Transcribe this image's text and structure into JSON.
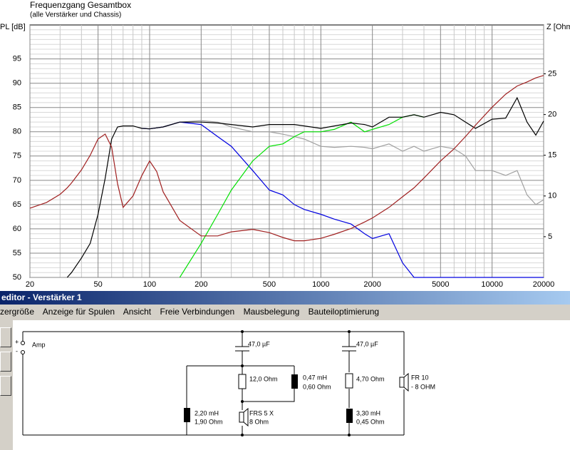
{
  "chart_data": {
    "type": "line",
    "title": "Frequenzgang Gesamtbox",
    "subtitle": "(alle Verstärker und Chassis)",
    "y_label": "PL [dB]",
    "y2_label": "Z [Ohm",
    "log_x": true,
    "grid": true,
    "xlim": [
      20,
      20000
    ],
    "xticks": [
      20,
      50,
      100,
      200,
      500,
      1000,
      2000,
      5000,
      10000,
      20000
    ],
    "xminor": [
      30,
      40,
      60,
      70,
      80,
      90,
      300,
      400,
      600,
      700,
      800,
      900,
      3000,
      4000,
      6000,
      7000,
      8000,
      9000
    ],
    "ylim": [
      50,
      102
    ],
    "yticks": [
      50,
      55,
      60,
      65,
      70,
      75,
      80,
      85,
      90,
      95
    ],
    "yminor": [
      51,
      52,
      53,
      54,
      56,
      57,
      58,
      59,
      61,
      62,
      63,
      64,
      66,
      67,
      68,
      69,
      71,
      72,
      73,
      74,
      76,
      77,
      78,
      79,
      81,
      82,
      83,
      84,
      86,
      87,
      88,
      89,
      91,
      92,
      93,
      94,
      96,
      97,
      98,
      99,
      100,
      101
    ],
    "y2lim": [
      0,
      31
    ],
    "y2ticks": [
      5,
      10,
      15,
      20,
      25
    ],
    "x": [
      20,
      25,
      30,
      33,
      35,
      40,
      45,
      50,
      55,
      60,
      65,
      70,
      80,
      90,
      100,
      110,
      120,
      150,
      200,
      250,
      300,
      400,
      500,
      600,
      700,
      800,
      1000,
      1200,
      1500,
      1800,
      2000,
      2500,
      3000,
      3500,
      4000,
      5000,
      6000,
      7000,
      8000,
      10000,
      12000,
      14000,
      16000,
      18000,
      20000
    ],
    "series": [
      {
        "color": "#a0a0a0",
        "values": [
          null,
          null,
          null,
          null,
          null,
          null,
          null,
          null,
          null,
          null,
          null,
          null,
          null,
          null,
          80.6,
          80.8,
          81,
          82,
          82.3,
          82,
          81,
          80,
          80,
          79.5,
          79,
          78.5,
          77,
          76.8,
          77,
          76.8,
          76.5,
          77.5,
          76,
          77,
          76,
          77,
          76.5,
          75,
          72,
          72,
          71,
          72,
          67,
          65,
          66
        ]
      },
      {
        "color": "#0000e0",
        "values": [
          null,
          null,
          null,
          null,
          null,
          null,
          null,
          null,
          null,
          null,
          null,
          null,
          null,
          80.7,
          80.6,
          80.8,
          81,
          82,
          81.5,
          79,
          77,
          72,
          68,
          67,
          65,
          64,
          63,
          62,
          61,
          59,
          58,
          59,
          53,
          50,
          50,
          50,
          50,
          50,
          50,
          50,
          50,
          50,
          50,
          50,
          50
        ]
      },
      {
        "color": "#00e000",
        "values": [
          null,
          null,
          null,
          null,
          null,
          null,
          null,
          null,
          null,
          null,
          null,
          null,
          null,
          null,
          null,
          null,
          null,
          50,
          57,
          63,
          68,
          74,
          77,
          77.5,
          79,
          80,
          80,
          80.5,
          82,
          80,
          80.5,
          81.5,
          83,
          83.5,
          83,
          null,
          null,
          null,
          null,
          null,
          null,
          null,
          null,
          null,
          null
        ]
      },
      {
        "color": "#000000",
        "values": [
          null,
          null,
          null,
          50,
          51,
          54,
          57,
          63,
          70.4,
          78.5,
          81,
          81.2,
          81.2,
          80.7,
          80.6,
          80.8,
          81,
          82,
          82,
          81.8,
          81.5,
          81,
          81.5,
          81.5,
          81.5,
          81.2,
          80.7,
          81.2,
          81.8,
          81.5,
          81,
          83,
          83,
          83.5,
          83,
          84,
          83.5,
          82,
          80.7,
          82.6,
          82.8,
          87,
          82,
          79.3,
          82.2
        ]
      },
      {
        "color": "#a02020",
        "axis": "y2",
        "values": [
          8.5,
          9.2,
          10.2,
          11,
          11.6,
          13.2,
          15,
          17,
          17.6,
          16,
          11.5,
          8.6,
          10,
          12.5,
          14.3,
          13,
          10.5,
          7,
          5.1,
          5.1,
          5.6,
          5.9,
          5.5,
          4.9,
          4.5,
          4.5,
          4.8,
          5.3,
          6,
          6.8,
          7.3,
          8.6,
          9.9,
          11,
          12.2,
          14.3,
          15.8,
          17.3,
          18.7,
          20.9,
          22.5,
          23.5,
          24,
          24.5,
          24.8
        ]
      }
    ]
  },
  "editor": {
    "title": "editor - Verstärker 1",
    "menu": [
      "zergröße",
      "Anzeige für Spulen",
      "Ansicht",
      "Freie Verbindungen",
      "Mausbelegung",
      "Bauteiloptimierung"
    ],
    "circuit": {
      "amp": "Amp",
      "plus": "+",
      "minus": "-",
      "c1": "47,0 µF",
      "r1": "12,0 Ohm",
      "l1": "0,47 mH",
      "l1r": "0,60 Ohm",
      "l2": "2,20 mH",
      "l2r": "1,90 Ohm",
      "spk1": "FRS 5 X",
      "spk1z": "8 Ohm",
      "c2": "47,0 µF",
      "r2": "4,70 Ohm",
      "l3": "3,30 mH",
      "l3r": "0,45 Ohm",
      "spk2": "FR 10",
      "spk2z": "- 8 OHM"
    }
  }
}
